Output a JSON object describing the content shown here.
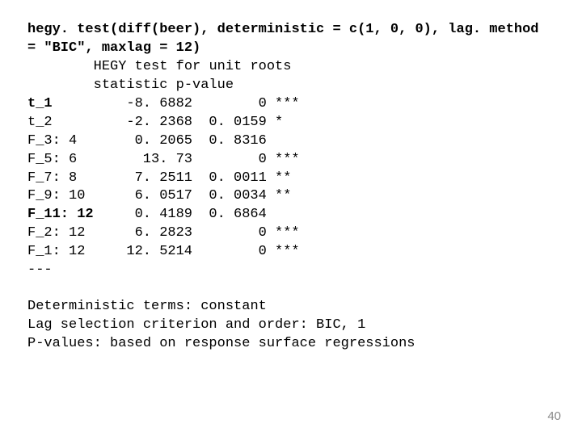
{
  "cmd1": "hegy. test(diff(beer), deterministic = c(1, 0, 0), lag. method",
  "cmd2": "= \"BIC\", maxlag = 12)",
  "headerTitle": "HEGY test for unit roots",
  "colHeaders": "        statistic p-value",
  "rows": [
    {
      "label": "t_1",
      "stat": "-8. 6882",
      "pval": "0",
      "sig": "***",
      "bold": true
    },
    {
      "label": "t_2",
      "stat": "-2. 2368",
      "pval": "0. 0159",
      "sig": "*",
      "bold": false
    },
    {
      "label": "F_3: 4",
      "stat": "0. 2065",
      "pval": "0. 8316",
      "sig": "",
      "bold": false
    },
    {
      "label": "F_5: 6",
      "stat": "13. 73",
      "pval": "0",
      "sig": "***",
      "bold": false
    },
    {
      "label": "F_7: 8",
      "stat": "7. 2511",
      "pval": "0. 0011",
      "sig": "**",
      "bold": false
    },
    {
      "label": "F_9: 10",
      "stat": "6. 0517",
      "pval": "0. 0034",
      "sig": "**",
      "bold": false
    },
    {
      "label": "F_11: 12",
      "stat": "0. 4189",
      "pval": "0. 6864",
      "sig": "",
      "bold": true
    },
    {
      "label": "F_2: 12",
      "stat": "6. 2823",
      "pval": "0",
      "sig": "***",
      "bold": false
    },
    {
      "label": "F_1: 12",
      "stat": "12. 5214",
      "pval": "0",
      "sig": "***",
      "bold": false
    }
  ],
  "sep": "---",
  "foot1": "Deterministic terms: constant",
  "foot2": "Lag selection criterion and order: BIC, 1",
  "foot3": "P-values: based on response surface regressions",
  "pageNum": "40",
  "layout": {
    "labelWidth": 8,
    "statWidth": 12,
    "pvalWidth": 9
  }
}
